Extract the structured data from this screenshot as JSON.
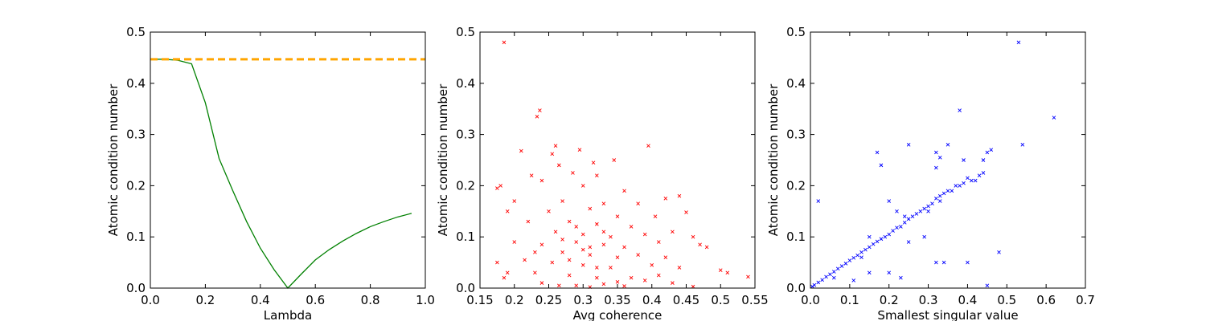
{
  "chart_data": [
    {
      "type": "line",
      "xlabel": "Lambda",
      "ylabel": "Atomic condition number",
      "xlim": [
        0,
        1
      ],
      "ylim": [
        0,
        0.5
      ],
      "xticks": [
        {
          "value": 0,
          "label": "0.0"
        },
        0.2,
        0.4,
        0.6,
        0.8,
        {
          "value": 1,
          "label": "1.0"
        }
      ],
      "yticks": [
        {
          "value": 0,
          "label": "0.0"
        },
        0.1,
        0.2,
        0.3,
        0.4,
        0.5
      ],
      "series": [
        {
          "color": "#008000",
          "x": [
            0,
            0.05,
            0.1,
            0.15,
            0.2,
            0.25,
            0.3,
            0.35,
            0.4,
            0.45,
            0.5,
            0.55,
            0.6,
            0.65,
            0.7,
            0.75,
            0.8,
            0.85,
            0.9,
            0.95
          ],
          "values": [
            0.447,
            0.447,
            0.445,
            0.438,
            0.362,
            0.253,
            0.19,
            0.13,
            0.078,
            0.036,
            0.0,
            0.028,
            0.055,
            0.075,
            0.092,
            0.107,
            0.12,
            0.13,
            0.139,
            0.146
          ]
        },
        {
          "color": "#ffa500",
          "dashed": true,
          "x": [
            0,
            1
          ],
          "values": [
            0.447,
            0.447
          ]
        }
      ]
    },
    {
      "type": "scatter",
      "xlabel": "Avg coherence",
      "ylabel": "Atomic condition number",
      "color": "#ff0000",
      "xlim": [
        0.15,
        0.55
      ],
      "ylim": [
        0,
        0.5
      ],
      "xticks": [
        0.15,
        0.2,
        0.25,
        0.3,
        0.35,
        0.4,
        0.45,
        0.5,
        0.55
      ],
      "yticks": [
        {
          "value": 0,
          "label": "0.0"
        },
        0.1,
        0.2,
        0.3,
        0.4,
        0.5
      ],
      "x": [
        0.185,
        0.237,
        0.233,
        0.395,
        0.295,
        0.26,
        0.21,
        0.255,
        0.345,
        0.315,
        0.265,
        0.18,
        0.175,
        0.225,
        0.285,
        0.32,
        0.24,
        0.3,
        0.36,
        0.42,
        0.44,
        0.38,
        0.2,
        0.27,
        0.33,
        0.19,
        0.25,
        0.31,
        0.35,
        0.405,
        0.45,
        0.22,
        0.28,
        0.32,
        0.37,
        0.26,
        0.3,
        0.34,
        0.39,
        0.43,
        0.46,
        0.2,
        0.24,
        0.29,
        0.33,
        0.36,
        0.41,
        0.47,
        0.48,
        0.23,
        0.27,
        0.31,
        0.35,
        0.38,
        0.42,
        0.175,
        0.215,
        0.255,
        0.3,
        0.34,
        0.4,
        0.44,
        0.5,
        0.51,
        0.19,
        0.23,
        0.28,
        0.32,
        0.37,
        0.41,
        0.54,
        0.185,
        0.24,
        0.29,
        0.33,
        0.36,
        0.43,
        0.46,
        0.265,
        0.31,
        0.35,
        0.39,
        0.27,
        0.29,
        0.31,
        0.33,
        0.28,
        0.3,
        0.32
      ],
      "values": [
        0.48,
        0.347,
        0.335,
        0.278,
        0.27,
        0.278,
        0.268,
        0.262,
        0.25,
        0.245,
        0.24,
        0.2,
        0.195,
        0.22,
        0.225,
        0.22,
        0.21,
        0.2,
        0.19,
        0.175,
        0.18,
        0.165,
        0.17,
        0.17,
        0.165,
        0.15,
        0.15,
        0.155,
        0.14,
        0.14,
        0.148,
        0.13,
        0.13,
        0.125,
        0.12,
        0.11,
        0.105,
        0.1,
        0.105,
        0.11,
        0.1,
        0.09,
        0.085,
        0.09,
        0.085,
        0.08,
        0.09,
        0.085,
        0.08,
        0.07,
        0.07,
        0.065,
        0.06,
        0.065,
        0.06,
        0.05,
        0.055,
        0.05,
        0.045,
        0.04,
        0.045,
        0.04,
        0.035,
        0.03,
        0.03,
        0.03,
        0.025,
        0.02,
        0.02,
        0.025,
        0.022,
        0.02,
        0.01,
        0.005,
        0.008,
        0.004,
        0.01,
        0.003,
        0.005,
        0.002,
        0.012,
        0.015,
        0.095,
        0.12,
        0.08,
        0.11,
        0.055,
        0.075,
        0.04
      ]
    },
    {
      "type": "scatter",
      "xlabel": "Smallest singular value",
      "ylabel": "Atomic condition number",
      "color": "#0000ff",
      "xlim": [
        0,
        0.7
      ],
      "ylim": [
        0,
        0.5
      ],
      "xticks": [
        {
          "value": 0,
          "label": "0.0"
        },
        0.1,
        0.2,
        0.3,
        0.4,
        0.5,
        0.6,
        0.7
      ],
      "yticks": [
        {
          "value": 0,
          "label": "0.0"
        },
        0.1,
        0.2,
        0.3,
        0.4,
        0.5
      ],
      "x": [
        0.005,
        0.01,
        0.02,
        0.03,
        0.04,
        0.05,
        0.06,
        0.07,
        0.08,
        0.09,
        0.1,
        0.11,
        0.12,
        0.13,
        0.14,
        0.15,
        0.16,
        0.17,
        0.18,
        0.19,
        0.2,
        0.21,
        0.22,
        0.23,
        0.24,
        0.25,
        0.26,
        0.27,
        0.28,
        0.29,
        0.3,
        0.31,
        0.32,
        0.33,
        0.34,
        0.35,
        0.36,
        0.37,
        0.38,
        0.39,
        0.4,
        0.41,
        0.42,
        0.43,
        0.44,
        0.45,
        0.46,
        0.44,
        0.2,
        0.22,
        0.25,
        0.17,
        0.18,
        0.02,
        0.32,
        0.33,
        0.32,
        0.39,
        0.38,
        0.53,
        0.54,
        0.62,
        0.35,
        0.48,
        0.4,
        0.32,
        0.34,
        0.45,
        0.15,
        0.2,
        0.23,
        0.11,
        0.06,
        0.13,
        0.29,
        0.25,
        0.15,
        0.24,
        0.33,
        0.3
      ],
      "values": [
        0.003,
        0.006,
        0.011,
        0.016,
        0.022,
        0.027,
        0.032,
        0.038,
        0.043,
        0.048,
        0.054,
        0.059,
        0.064,
        0.07,
        0.075,
        0.08,
        0.086,
        0.091,
        0.096,
        0.1,
        0.105,
        0.112,
        0.118,
        0.12,
        0.128,
        0.135,
        0.14,
        0.145,
        0.15,
        0.155,
        0.16,
        0.165,
        0.175,
        0.18,
        0.185,
        0.19,
        0.19,
        0.2,
        0.2,
        0.205,
        0.215,
        0.21,
        0.21,
        0.22,
        0.225,
        0.265,
        0.27,
        0.25,
        0.17,
        0.15,
        0.28,
        0.265,
        0.24,
        0.17,
        0.265,
        0.255,
        0.235,
        0.25,
        0.347,
        0.48,
        0.28,
        0.333,
        0.28,
        0.07,
        0.05,
        0.05,
        0.05,
        0.005,
        0.03,
        0.03,
        0.02,
        0.015,
        0.02,
        0.06,
        0.1,
        0.09,
        0.1,
        0.14,
        0.17,
        0.15
      ]
    }
  ]
}
